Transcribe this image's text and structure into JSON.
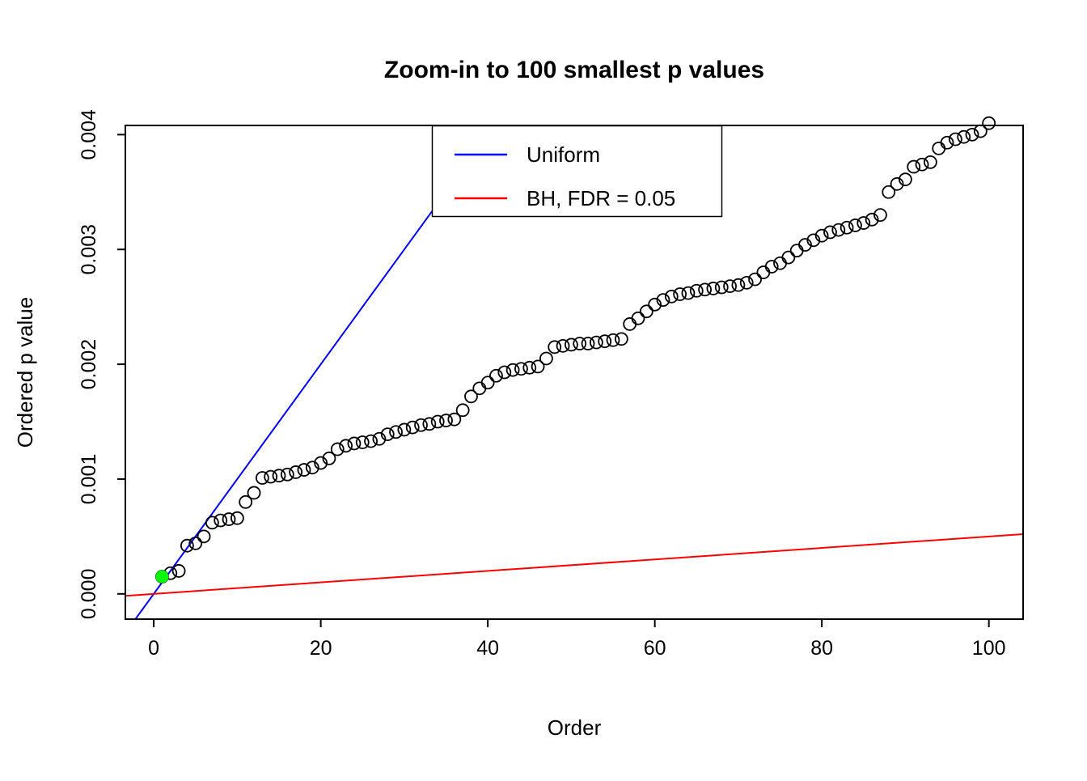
{
  "chart_data": {
    "type": "scatter",
    "title": "Zoom-in to 100 smallest p values",
    "xlabel": "Order",
    "ylabel": "Ordered p value",
    "xlim": [
      -3.4,
      104.1
    ],
    "ylim": [
      -0.00022,
      0.00408
    ],
    "grid": false,
    "xticks": {
      "values": [
        0,
        20,
        40,
        60,
        80,
        100
      ],
      "labels": [
        "0",
        "20",
        "40",
        "60",
        "80",
        "100"
      ]
    },
    "yticks": {
      "values": [
        0,
        0.001,
        0.002,
        0.003,
        0.004
      ],
      "labels": [
        "0.000",
        "0.001",
        "0.002",
        "0.003",
        "0.004"
      ]
    },
    "legend": {
      "position": "top-center",
      "entries": [
        {
          "label": "Uniform",
          "color": "#0000FF"
        },
        {
          "label": "BH, FDR = 0.05",
          "color": "#FF0000"
        }
      ]
    },
    "lines": [
      {
        "name": "uniform",
        "color": "#0000FF",
        "slope": 0.0001,
        "intercept": 0
      },
      {
        "name": "bh-fdr-0.05",
        "color": "#FF0000",
        "slope": 5e-06,
        "intercept": 0
      }
    ],
    "points": {
      "marker": "open-circle",
      "color": "#000000",
      "order_start": 1,
      "ordered_p_values": [
        0.00015,
        0.00018,
        0.0002,
        0.00042,
        0.00044,
        0.0005,
        0.00062,
        0.00064,
        0.00065,
        0.00066,
        0.0008,
        0.00088,
        0.00101,
        0.00102,
        0.00103,
        0.00104,
        0.00106,
        0.00108,
        0.0011,
        0.00114,
        0.00118,
        0.00126,
        0.00129,
        0.00131,
        0.00132,
        0.00133,
        0.00135,
        0.00139,
        0.00141,
        0.00143,
        0.00145,
        0.00147,
        0.00148,
        0.0015,
        0.00151,
        0.00152,
        0.0016,
        0.00172,
        0.00179,
        0.00184,
        0.0019,
        0.00193,
        0.00195,
        0.00196,
        0.00197,
        0.00198,
        0.00205,
        0.00215,
        0.00216,
        0.00217,
        0.00218,
        0.00218,
        0.00219,
        0.0022,
        0.00221,
        0.00222,
        0.00235,
        0.0024,
        0.00246,
        0.00252,
        0.00256,
        0.00259,
        0.00261,
        0.00262,
        0.00264,
        0.00265,
        0.00266,
        0.00267,
        0.00268,
        0.00269,
        0.00271,
        0.00274,
        0.0028,
        0.00285,
        0.00288,
        0.00293,
        0.00299,
        0.00304,
        0.00308,
        0.00312,
        0.00315,
        0.00317,
        0.00319,
        0.00321,
        0.00323,
        0.00326,
        0.0033,
        0.0035,
        0.00357,
        0.00361,
        0.00372,
        0.00374,
        0.00376,
        0.00388,
        0.00393,
        0.00396,
        0.00398,
        0.004,
        0.00403,
        0.0041
      ]
    },
    "highlight_point": {
      "x": 1,
      "y": 0.00015,
      "color": "#00FF00"
    }
  },
  "colors": {
    "background": "#FFFFFF",
    "axis": "#000000",
    "uniform_line": "#0000FF",
    "bh_line": "#FF0000",
    "highlight": "#00FF00"
  }
}
